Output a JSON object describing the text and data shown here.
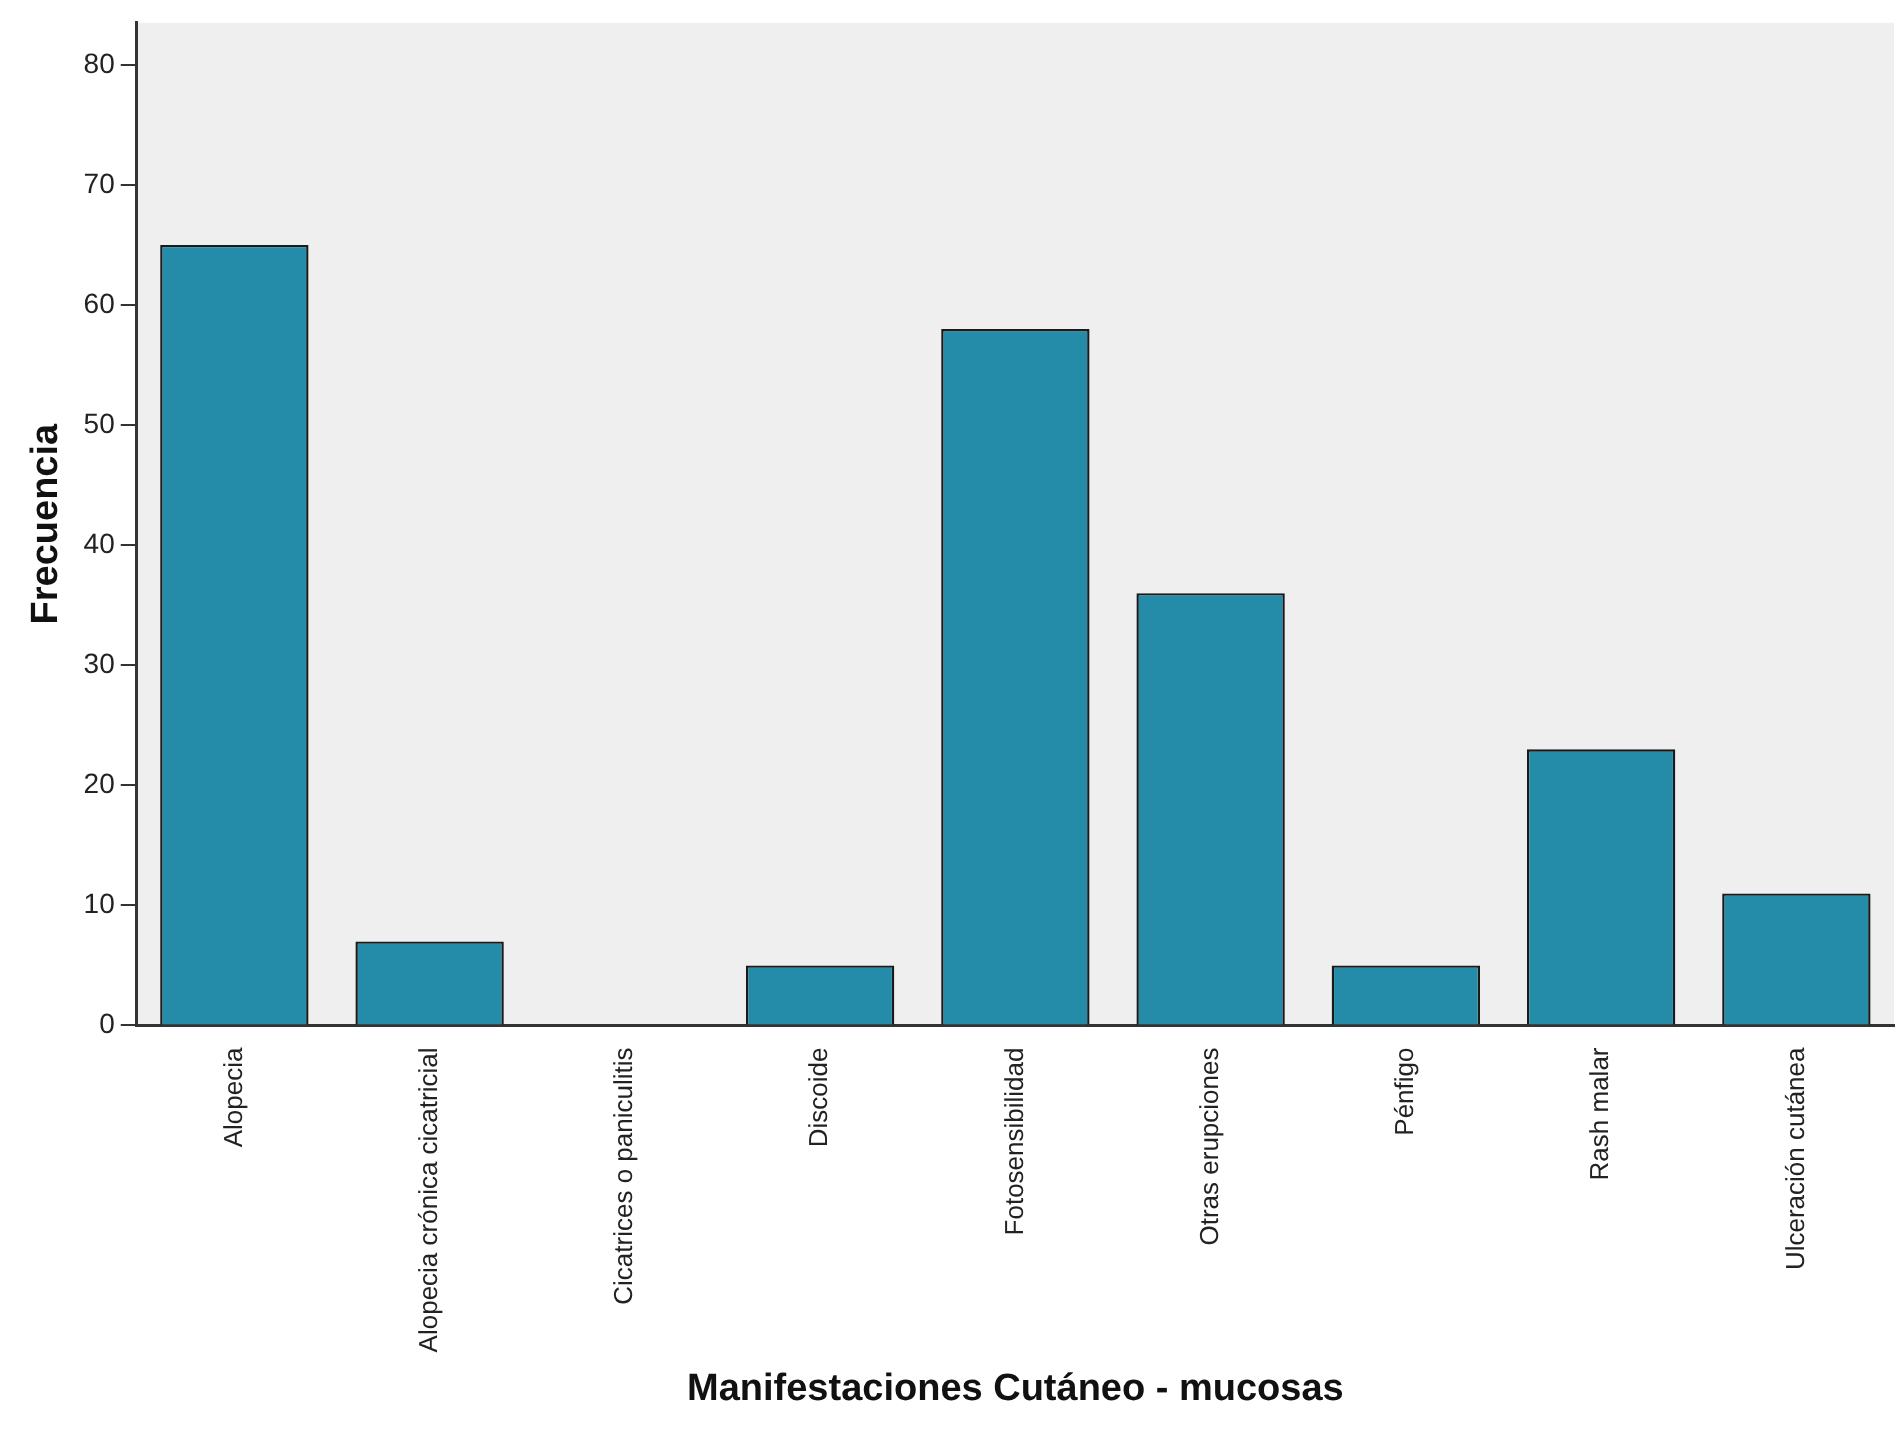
{
  "chart_data": {
    "type": "bar",
    "xlabel": "Manifestaciones Cutáneo - mucosas",
    "ylabel": "Frecuencia",
    "categories": [
      "Alopecia",
      "Alopecia crónica cicatricial",
      "Cicatrices o paniculitis",
      "Discoide",
      "Fotosensibilidad",
      "Otras erupciones",
      "Pénfigo",
      "Rash malar",
      "Ulceración cutánea"
    ],
    "values": [
      65,
      7,
      0,
      5,
      58,
      36,
      5,
      23,
      11
    ],
    "color": "#248ba9",
    "ylim": [
      0,
      83.5
    ],
    "yticks": [
      0,
      10,
      20,
      30,
      40,
      50,
      60,
      70,
      80
    ],
    "grid": false,
    "legend": false
  }
}
